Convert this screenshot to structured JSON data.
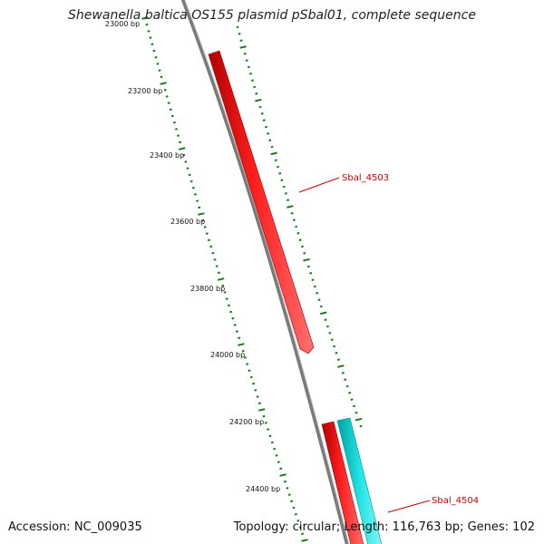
{
  "title": "Shewanella baltica OS155 plasmid pSbal01, complete sequence",
  "footer": {
    "accession": "Accession: NC_009035",
    "summary": "Topology: circular; Length: 116,763 bp; Genes: 102"
  },
  "colors": {
    "backbone": "#7a7a7a",
    "forward_gene": "#ff0000",
    "reverse_gene": "#00d0d0",
    "ticks": "#1a7a1a",
    "gene_label": "#cc0000"
  },
  "ticks": [
    {
      "label": "23000 bp",
      "faded": true
    },
    {
      "label": "23200 bp"
    },
    {
      "label": "23400 bp"
    },
    {
      "label": "23600 bp"
    },
    {
      "label": "23800 bp"
    },
    {
      "label": "24000 bp"
    },
    {
      "label": "24200 bp"
    },
    {
      "label": "24400 bp"
    }
  ],
  "genes": [
    {
      "name": "Sbal_4503",
      "strand": "forward"
    },
    {
      "name": "Sbal_4504",
      "strand": "reverse"
    }
  ]
}
